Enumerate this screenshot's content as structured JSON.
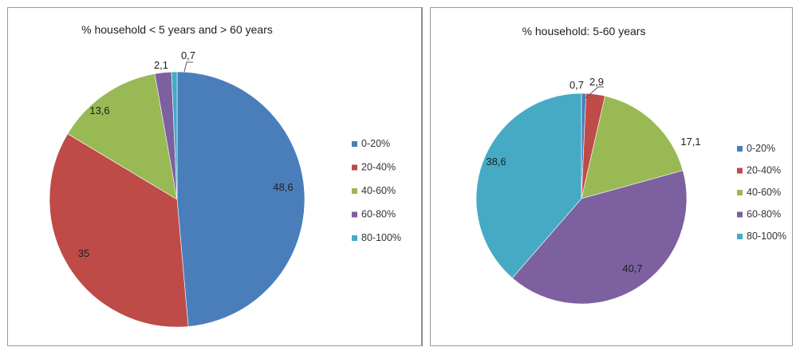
{
  "chart_data": [
    {
      "type": "pie",
      "title": "% household < 5 years and > 60 years",
      "legend_position": "right",
      "categories": [
        "0-20%",
        "20-40%",
        "40-60%",
        "60-80%",
        "80-100%"
      ],
      "values": [
        48.6,
        35,
        13.6,
        2.1,
        0.7
      ],
      "data_labels": [
        "48,6",
        "35",
        "13,6",
        "2,1",
        "0,7"
      ],
      "colors": [
        "#4a7ebb",
        "#be4b48",
        "#98b954",
        "#7d60a0",
        "#46aac5"
      ]
    },
    {
      "type": "pie",
      "title": "% household: 5-60 years",
      "legend_position": "right",
      "categories": [
        "0-20%",
        "20-40%",
        "40-60%",
        "60-80%",
        "80-100%"
      ],
      "values": [
        0.7,
        2.9,
        17.1,
        40.7,
        38.6
      ],
      "data_labels": [
        "0,7",
        "2,9",
        "17,1",
        "40,7",
        "38,6"
      ],
      "colors": [
        "#4a7ebb",
        "#be4b48",
        "#98b954",
        "#7d60a0",
        "#46aac5"
      ]
    }
  ]
}
